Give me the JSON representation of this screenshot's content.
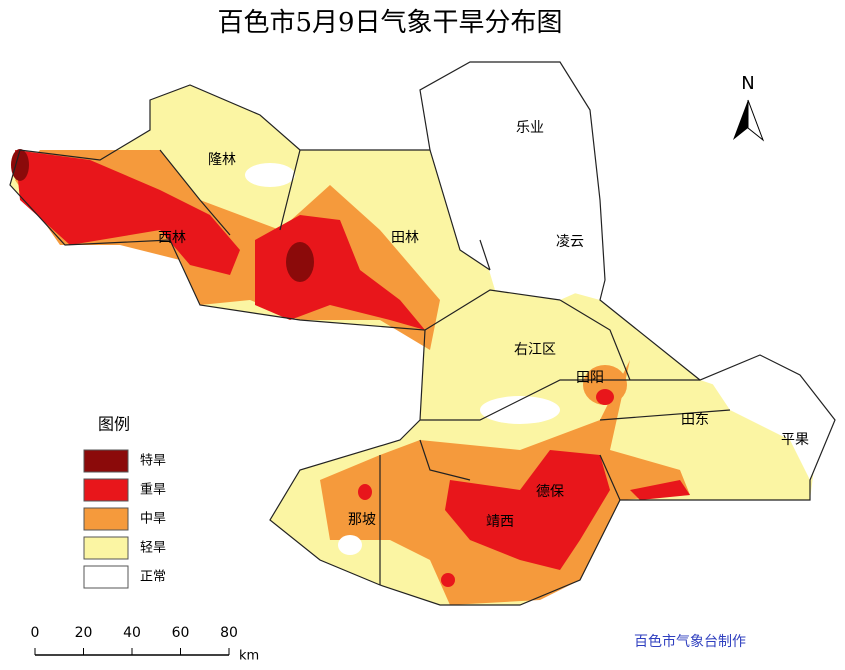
{
  "title": "百色市5月9日气象干旱分布图",
  "north": "N",
  "legend": {
    "title": "图例",
    "items": [
      {
        "label": "特旱",
        "color": "#8b0a0a"
      },
      {
        "label": "重旱",
        "color": "#e8161b"
      },
      {
        "label": "中旱",
        "color": "#f59a3c"
      },
      {
        "label": "轻旱",
        "color": "#fbf5a3"
      },
      {
        "label": "正常",
        "color": "#ffffff"
      }
    ]
  },
  "regions": [
    {
      "label": "乐业"
    },
    {
      "label": "隆林"
    },
    {
      "label": "凌云"
    },
    {
      "label": "西林"
    },
    {
      "label": "田林"
    },
    {
      "label": "右江区"
    },
    {
      "label": "田阳"
    },
    {
      "label": "田东"
    },
    {
      "label": "平果"
    },
    {
      "label": "德保"
    },
    {
      "label": "靖西"
    },
    {
      "label": "那坡"
    }
  ],
  "scale_bar": {
    "ticks": [
      "0",
      "20",
      "40",
      "60",
      "80"
    ],
    "unit": "km"
  },
  "credit": "百色市气象台制作"
}
